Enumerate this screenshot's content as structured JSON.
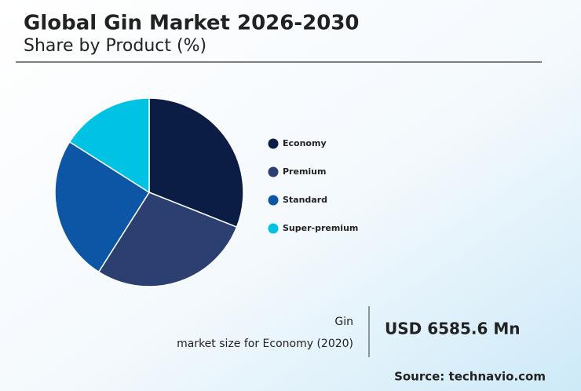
{
  "chart_data": {
    "type": "pie",
    "title": "Global Gin Market 2026-2030",
    "subtitle": "Share by Product (%)",
    "categories": [
      "Economy",
      "Premium",
      "Standard",
      "Super-premium"
    ],
    "values": [
      31,
      28,
      25,
      16
    ],
    "colors": [
      "#0b1c45",
      "#2b3f70",
      "#0d56a6",
      "#00c3e3"
    ],
    "legend": "right"
  },
  "callout": {
    "line1": "Gin",
    "line2": "market size for Economy (2020)",
    "value": "USD 6585.6 Mn"
  },
  "source": "Source: technavio.com"
}
